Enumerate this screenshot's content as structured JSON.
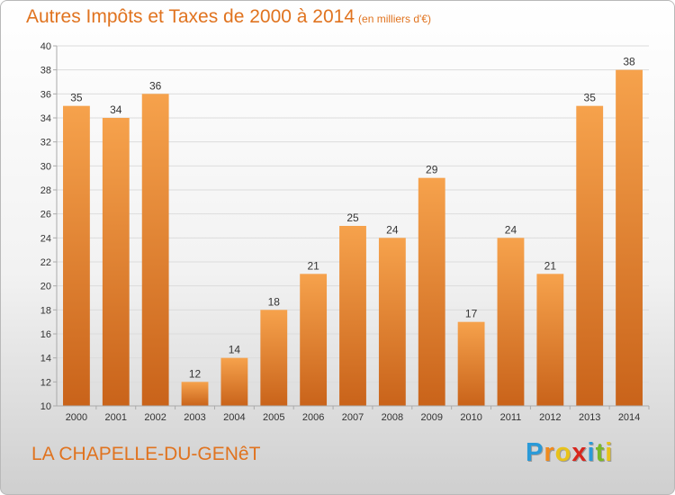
{
  "header": {
    "title": "Autres Impôts et Taxes de 2000 à 2014",
    "unit": "(en milliers d'€)"
  },
  "footer": {
    "commune": "LA CHAPELLE-DU-GENêT",
    "logo": [
      {
        "char": "P",
        "color": "#2a9ad8"
      },
      {
        "char": "r",
        "color": "#f08a1e"
      },
      {
        "char": "o",
        "color": "#e8c21a"
      },
      {
        "char": "x",
        "color": "#d8261e"
      },
      {
        "char": "i",
        "color": "#2a9ad8"
      },
      {
        "char": "t",
        "color": "#7ab828"
      },
      {
        "char": "i",
        "color": "#e8c21a"
      }
    ]
  },
  "chart_data": {
    "type": "bar",
    "title": "Autres Impôts et Taxes de 2000 à 2014",
    "subtitle": "(en milliers d'€)",
    "categories": [
      "2000",
      "2001",
      "2002",
      "2003",
      "2004",
      "2005",
      "2006",
      "2007",
      "2008",
      "2009",
      "2010",
      "2011",
      "2012",
      "2013",
      "2014"
    ],
    "values": [
      35,
      34,
      36,
      12,
      14,
      18,
      21,
      25,
      24,
      29,
      17,
      24,
      21,
      35,
      38
    ],
    "ylim": [
      10,
      40
    ],
    "yticks": [
      10,
      12,
      14,
      16,
      18,
      20,
      22,
      24,
      26,
      28,
      30,
      32,
      34,
      36,
      38,
      40
    ],
    "grid": true,
    "colors": {
      "bar_top": "#f6a24c",
      "bar_bottom": "#c9631a",
      "grid": "#dcdcdc",
      "axis": "#aaaaaa"
    }
  }
}
